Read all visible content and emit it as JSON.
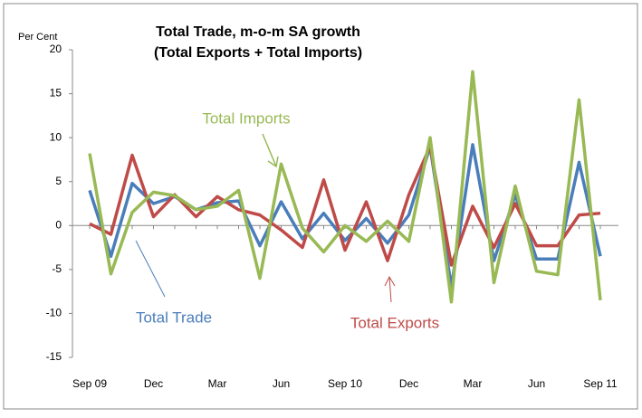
{
  "chart_data": {
    "type": "line",
    "title": [
      "Total Trade, m-o-m SA growth",
      "(Total Exports + Total Imports)"
    ],
    "y_label": "Per Cent",
    "categories": [
      "Sep 09",
      null,
      null,
      "Dec",
      null,
      null,
      "Mar",
      null,
      null,
      "Jun",
      null,
      null,
      "Sep 10",
      null,
      null,
      "Dec",
      null,
      null,
      "Mar",
      null,
      null,
      "Jun",
      null,
      null,
      "Sep 11"
    ],
    "series": [
      {
        "name": "Total Trade",
        "color": "#4a7ebb",
        "values": [
          4,
          -3.5,
          4.8,
          2.5,
          3.3,
          1.8,
          2.6,
          2.8,
          -2.3,
          2.7,
          -1.5,
          1.4,
          -1.7,
          0.8,
          -2,
          1.2,
          9,
          -7,
          9.2,
          -4,
          3.5,
          -3.8,
          -3.8,
          7.2,
          -3.5
        ]
      },
      {
        "name": "Total Exports",
        "color": "#be4b48",
        "values": [
          0.2,
          -1,
          8,
          1,
          3.5,
          1,
          3.3,
          1.8,
          1.2,
          -0.5,
          -2.5,
          5.2,
          -2.8,
          2.7,
          -4,
          3.5,
          9,
          -4.5,
          2.2,
          -2.5,
          2.5,
          -2.3,
          -2.3,
          1.2,
          1.4
        ]
      },
      {
        "name": "Total Imports",
        "color": "#98b954",
        "values": [
          8.2,
          -5.5,
          1.5,
          3.8,
          3.4,
          1.8,
          2.2,
          4,
          -6,
          7,
          -0.3,
          -3,
          0,
          -1.8,
          0.5,
          -1.8,
          10,
          -8.7,
          17.5,
          -6.5,
          4.5,
          -5.2,
          -5.6,
          14.3,
          -8.5
        ]
      }
    ],
    "ylim": [
      -15,
      20
    ],
    "yticks": [
      -15,
      -10,
      -5,
      0,
      5,
      10,
      15,
      20
    ]
  }
}
